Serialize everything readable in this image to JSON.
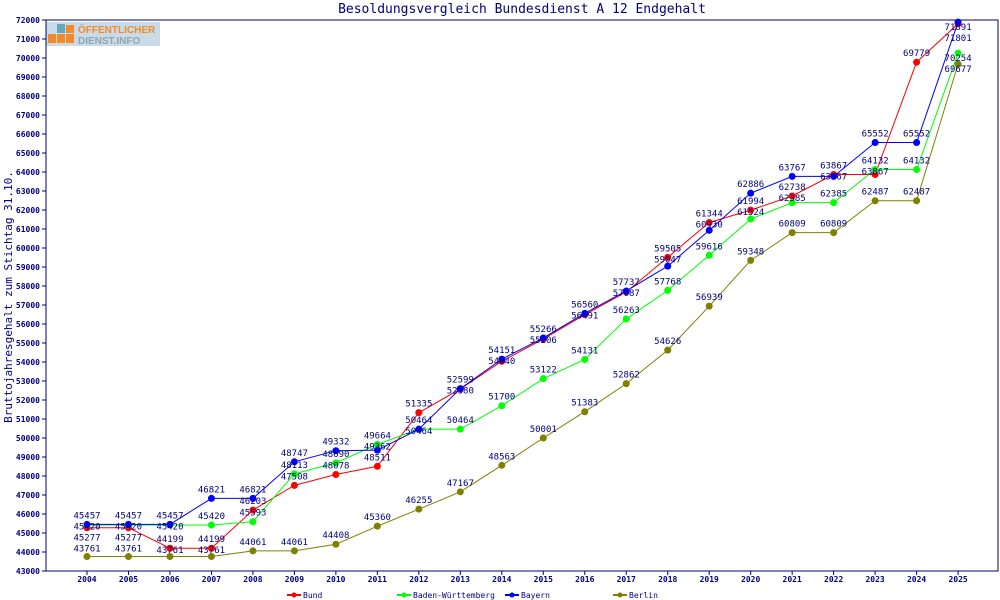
{
  "chart_data": {
    "type": "line",
    "title": "Besoldungsvergleich Bundesdienst A 12 Endgehalt",
    "ylabel": "Bruttojahresgehalt zum Stichtag 31.10.",
    "xlabel": "",
    "ylim": [
      43000,
      72000
    ],
    "y_ticks": [
      43000,
      44000,
      45000,
      46000,
      47000,
      48000,
      49000,
      50000,
      51000,
      52000,
      53000,
      54000,
      55000,
      56000,
      57000,
      58000,
      59000,
      60000,
      61000,
      62000,
      63000,
      64000,
      65000,
      66000,
      67000,
      68000,
      69000,
      70000,
      71000,
      72000
    ],
    "categories": [
      "2004",
      "2005",
      "2006",
      "2007",
      "2008",
      "2009",
      "2010",
      "2011",
      "2012",
      "2013",
      "2014",
      "2015",
      "2016",
      "2017",
      "2018",
      "2019",
      "2020",
      "2021",
      "2022",
      "2023",
      "2024",
      "2025"
    ],
    "grid": false,
    "legend_position": "bottom",
    "series": [
      {
        "name": "Bund",
        "color": "#ff0000",
        "values": [
          45277,
          45277,
          44199,
          44199,
          46203,
          47508,
          48078,
          48511,
          51335,
          52580,
          54040,
          55206,
          56491,
          57687,
          59505,
          61344,
          61994,
          62738,
          63867,
          63867,
          69779,
          71801
        ]
      },
      {
        "name": "Baden-Württemberg",
        "color": "#00ff00",
        "values": [
          45420,
          45420,
          45420,
          45420,
          45593,
          48113,
          48690,
          49664,
          50464,
          50464,
          51700,
          53122,
          54131,
          56263,
          57768,
          59616,
          61524,
          62385,
          62385,
          64132,
          64132,
          70254
        ]
      },
      {
        "name": "Bayern",
        "color": "#0000ff",
        "values": [
          45457,
          45457,
          45457,
          46821,
          46821,
          48747,
          49332,
          49362,
          50464,
          52599,
          54151,
          55266,
          56560,
          57737,
          59047,
          60930,
          62886,
          63767,
          63767,
          65552,
          65552,
          71891
        ]
      },
      {
        "name": "Berlin",
        "color": "#808000",
        "values": [
          43761,
          43761,
          43761,
          43761,
          44061,
          44061,
          44408,
          45360,
          46255,
          47167,
          48563,
          50001,
          51383,
          52862,
          54626,
          56939,
          59348,
          60809,
          60809,
          62487,
          62487,
          69677
        ]
      }
    ]
  },
  "logo": {
    "line1": "ÖFFENTLICHER",
    "line2": "DIENST.INFO"
  }
}
